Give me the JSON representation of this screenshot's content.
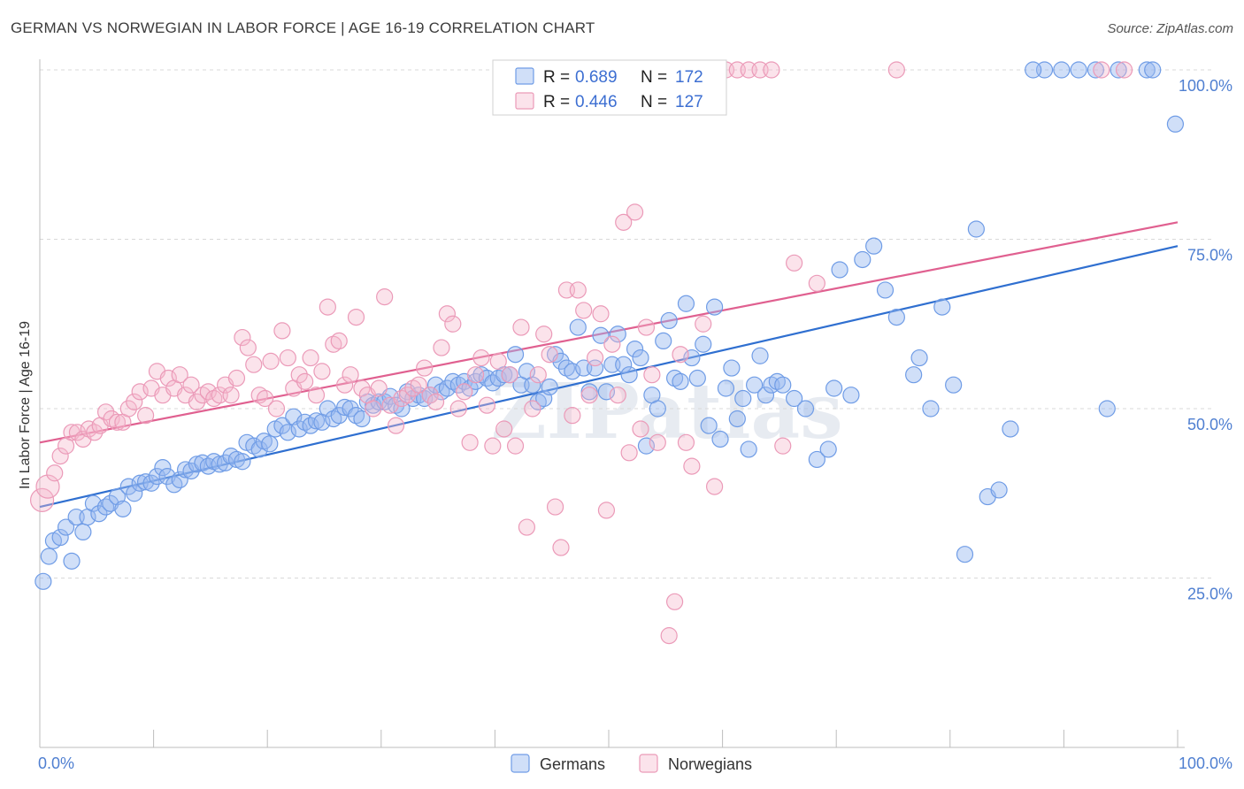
{
  "title": "GERMAN VS NORWEGIAN IN LABOR FORCE | AGE 16-19 CORRELATION CHART",
  "source": "Source: ZipAtlas.com",
  "watermark": "ZIPatlas",
  "colors": {
    "german": "#6f9ce6",
    "german_fill": "rgba(150,185,240,0.45)",
    "german_line": "#2f6fd0",
    "norwegian": "#eb9ab8",
    "norwegian_fill": "rgba(245,185,205,0.40)",
    "norwegian_line": "#e06090",
    "axis_label": "#4f7fd1",
    "grid": "#d8d8d8"
  },
  "legend": {
    "r_label": "R =",
    "n_label": "N =",
    "rows": [
      {
        "series": "Germans",
        "r": "0.689",
        "n": "172"
      },
      {
        "series": "Norwegians",
        "r": "0.446",
        "n": "127"
      }
    ]
  },
  "chart_data": {
    "type": "scatter",
    "xlabel": "",
    "ylabel": "In Labor Force | Age 16-19",
    "xlim": [
      0,
      100
    ],
    "ylim": [
      0,
      100
    ],
    "x_tick_labels": [
      "0.0%",
      "100.0%"
    ],
    "y_tick_values": [
      25,
      50,
      75,
      100
    ],
    "y_tick_labels": [
      "25.0%",
      "50.0%",
      "75.0%",
      "100.0%"
    ],
    "grid": "horizontal dashed",
    "legend_placement": "top-center",
    "series": [
      {
        "name": "Germans",
        "trend": {
          "x": [
            0,
            100
          ],
          "y": [
            35.5,
            74.0
          ]
        },
        "points": [
          [
            0.3,
            24.5
          ],
          [
            0.8,
            28.2
          ],
          [
            1.2,
            30.5
          ],
          [
            1.8,
            31
          ],
          [
            2.3,
            32.5
          ],
          [
            2.8,
            27.5
          ],
          [
            3.2,
            34
          ],
          [
            3.8,
            31.8
          ],
          [
            4.2,
            34
          ],
          [
            4.7,
            36
          ],
          [
            5.2,
            34.5
          ],
          [
            5.8,
            35.5
          ],
          [
            6.2,
            36
          ],
          [
            6.8,
            37
          ],
          [
            7.3,
            35.2
          ],
          [
            7.8,
            38.5
          ],
          [
            8.3,
            37.5
          ],
          [
            8.8,
            39
          ],
          [
            9.3,
            39.2
          ],
          [
            9.8,
            39
          ],
          [
            10.3,
            40
          ],
          [
            10.8,
            41.3
          ],
          [
            11.2,
            40
          ],
          [
            11.8,
            38.8
          ],
          [
            12.3,
            39.5
          ],
          [
            12.8,
            41
          ],
          [
            13.3,
            40.8
          ],
          [
            13.8,
            41.8
          ],
          [
            14.3,
            42
          ],
          [
            14.8,
            41.5
          ],
          [
            15.3,
            42.2
          ],
          [
            15.8,
            41.8
          ],
          [
            16.3,
            42
          ],
          [
            16.8,
            43
          ],
          [
            17.3,
            42.5
          ],
          [
            17.8,
            42.2
          ],
          [
            18.2,
            45
          ],
          [
            18.8,
            44.5
          ],
          [
            19.3,
            44
          ],
          [
            19.7,
            45.2
          ],
          [
            20.2,
            44.8
          ],
          [
            20.7,
            47
          ],
          [
            21.3,
            47.5
          ],
          [
            21.8,
            46.5
          ],
          [
            22.3,
            48.8
          ],
          [
            22.8,
            47
          ],
          [
            23.3,
            48
          ],
          [
            23.8,
            47.5
          ],
          [
            24.3,
            48.2
          ],
          [
            24.8,
            48
          ],
          [
            25.3,
            50
          ],
          [
            25.8,
            48.5
          ],
          [
            26.3,
            49
          ],
          [
            26.8,
            50.2
          ],
          [
            27.3,
            50
          ],
          [
            27.8,
            49
          ],
          [
            28.3,
            48.5
          ],
          [
            28.8,
            51
          ],
          [
            29.3,
            50.5
          ],
          [
            29.8,
            51
          ],
          [
            30.3,
            51
          ],
          [
            30.8,
            51.8
          ],
          [
            31.3,
            50.5
          ],
          [
            31.8,
            50
          ],
          [
            32.3,
            52.5
          ],
          [
            32.8,
            51.5
          ],
          [
            33.3,
            52
          ],
          [
            33.8,
            51.5
          ],
          [
            34.3,
            52
          ],
          [
            34.8,
            53.5
          ],
          [
            35.3,
            52.5
          ],
          [
            35.8,
            53
          ],
          [
            36.3,
            54
          ],
          [
            36.8,
            53.5
          ],
          [
            37.3,
            54
          ],
          [
            37.8,
            53
          ],
          [
            38.3,
            54
          ],
          [
            38.8,
            55
          ],
          [
            39.3,
            54.5
          ],
          [
            39.8,
            53.8
          ],
          [
            40.3,
            54.5
          ],
          [
            40.8,
            55
          ],
          [
            41.3,
            55
          ],
          [
            41.8,
            58
          ],
          [
            42.3,
            53.5
          ],
          [
            42.8,
            55.5
          ],
          [
            43.3,
            53.5
          ],
          [
            43.8,
            51
          ],
          [
            44.3,
            51.5
          ],
          [
            44.8,
            53.2
          ],
          [
            45.3,
            58
          ],
          [
            45.8,
            57
          ],
          [
            46.3,
            56
          ],
          [
            46.8,
            55.5
          ],
          [
            47.3,
            62
          ],
          [
            47.8,
            56
          ],
          [
            48.3,
            52.5
          ],
          [
            48.8,
            56
          ],
          [
            49.3,
            60.8
          ],
          [
            49.8,
            52.5
          ],
          [
            50.3,
            56.5
          ],
          [
            50.8,
            61
          ],
          [
            51.3,
            56.5
          ],
          [
            51.8,
            55
          ],
          [
            52.3,
            58.8
          ],
          [
            52.8,
            57.5
          ],
          [
            53.3,
            44.5
          ],
          [
            53.8,
            52
          ],
          [
            54.3,
            50
          ],
          [
            54.8,
            60
          ],
          [
            55.3,
            63
          ],
          [
            55.8,
            54.5
          ],
          [
            56.3,
            54
          ],
          [
            56.8,
            65.5
          ],
          [
            57.3,
            57.5
          ],
          [
            57.8,
            54.5
          ],
          [
            58.3,
            59.5
          ],
          [
            58.8,
            47.5
          ],
          [
            59.3,
            65
          ],
          [
            59.8,
            45.5
          ],
          [
            60.3,
            53
          ],
          [
            60.8,
            56
          ],
          [
            61.3,
            48.5
          ],
          [
            61.8,
            51.5
          ],
          [
            62.3,
            44
          ],
          [
            62.8,
            53.5
          ],
          [
            63.3,
            57.8
          ],
          [
            63.8,
            52
          ],
          [
            64.3,
            53.5
          ],
          [
            64.8,
            54
          ],
          [
            65.3,
            53.5
          ],
          [
            66.3,
            51.5
          ],
          [
            67.3,
            50
          ],
          [
            68.3,
            42.5
          ],
          [
            69.3,
            44
          ],
          [
            69.8,
            53
          ],
          [
            70.3,
            70.5
          ],
          [
            71.3,
            52
          ],
          [
            72.3,
            72
          ],
          [
            73.3,
            74
          ],
          [
            74.3,
            67.5
          ],
          [
            75.3,
            63.5
          ],
          [
            76.8,
            55
          ],
          [
            77.3,
            57.5
          ],
          [
            78.3,
            50
          ],
          [
            79.3,
            65
          ],
          [
            80.3,
            53.5
          ],
          [
            81.3,
            28.5
          ],
          [
            82.3,
            76.5
          ],
          [
            83.3,
            37
          ],
          [
            84.3,
            38
          ],
          [
            85.3,
            47
          ],
          [
            88.3,
            100
          ],
          [
            87.3,
            100
          ],
          [
            89.8,
            100
          ],
          [
            91.3,
            100
          ],
          [
            92.8,
            100
          ],
          [
            94.8,
            100
          ],
          [
            97.3,
            100
          ],
          [
            97.8,
            100
          ],
          [
            99.8,
            92
          ],
          [
            93.8,
            50
          ]
        ]
      },
      {
        "name": "Norwegians",
        "trend": {
          "x": [
            0,
            100
          ],
          "y": [
            45.0,
            77.5
          ]
        },
        "points": [
          [
            0.2,
            36.5
          ],
          [
            0.7,
            38.5
          ],
          [
            1.3,
            40.5
          ],
          [
            1.8,
            43
          ],
          [
            2.3,
            44.5
          ],
          [
            2.8,
            46.5
          ],
          [
            3.3,
            46.5
          ],
          [
            3.8,
            45.5
          ],
          [
            4.3,
            47
          ],
          [
            4.8,
            46.5
          ],
          [
            5.3,
            47.5
          ],
          [
            5.8,
            49.5
          ],
          [
            6.3,
            48.5
          ],
          [
            6.8,
            48
          ],
          [
            7.3,
            48
          ],
          [
            7.8,
            50
          ],
          [
            8.3,
            51
          ],
          [
            8.8,
            52.5
          ],
          [
            9.3,
            49
          ],
          [
            9.8,
            53
          ],
          [
            10.3,
            55.5
          ],
          [
            10.8,
            52
          ],
          [
            11.3,
            54.5
          ],
          [
            11.8,
            53
          ],
          [
            12.3,
            55
          ],
          [
            12.8,
            52
          ],
          [
            13.3,
            53.5
          ],
          [
            13.8,
            51
          ],
          [
            14.3,
            52
          ],
          [
            14.8,
            52.5
          ],
          [
            15.3,
            51.5
          ],
          [
            15.8,
            52
          ],
          [
            16.3,
            53.5
          ],
          [
            16.8,
            52
          ],
          [
            17.3,
            54.5
          ],
          [
            17.8,
            60.5
          ],
          [
            18.3,
            59
          ],
          [
            18.8,
            56.5
          ],
          [
            19.3,
            52
          ],
          [
            19.8,
            51.5
          ],
          [
            20.3,
            57
          ],
          [
            20.8,
            50
          ],
          [
            21.3,
            61.5
          ],
          [
            21.8,
            57.5
          ],
          [
            22.3,
            53
          ],
          [
            22.8,
            55
          ],
          [
            23.3,
            54
          ],
          [
            23.8,
            57.5
          ],
          [
            24.3,
            52
          ],
          [
            24.8,
            55.5
          ],
          [
            25.3,
            65
          ],
          [
            25.8,
            59.5
          ],
          [
            26.3,
            60
          ],
          [
            26.8,
            53.5
          ],
          [
            27.3,
            55
          ],
          [
            27.8,
            63.5
          ],
          [
            28.3,
            53
          ],
          [
            28.8,
            52
          ],
          [
            29.3,
            50
          ],
          [
            29.8,
            53
          ],
          [
            30.3,
            66.5
          ],
          [
            30.8,
            50.5
          ],
          [
            31.3,
            47.5
          ],
          [
            31.8,
            51.5
          ],
          [
            32.3,
            52
          ],
          [
            32.8,
            53
          ],
          [
            33.3,
            53.5
          ],
          [
            33.8,
            56
          ],
          [
            34.3,
            52
          ],
          [
            34.8,
            51
          ],
          [
            35.3,
            59
          ],
          [
            35.8,
            64
          ],
          [
            36.3,
            62.5
          ],
          [
            36.8,
            50
          ],
          [
            37.3,
            52.5
          ],
          [
            37.8,
            45
          ],
          [
            38.3,
            55
          ],
          [
            38.8,
            57.5
          ],
          [
            39.3,
            50.5
          ],
          [
            39.8,
            44.5
          ],
          [
            40.3,
            57
          ],
          [
            40.8,
            47
          ],
          [
            41.3,
            55
          ],
          [
            41.8,
            44.5
          ],
          [
            42.3,
            62
          ],
          [
            42.8,
            32.5
          ],
          [
            43.3,
            50
          ],
          [
            43.8,
            55
          ],
          [
            44.3,
            61
          ],
          [
            44.8,
            58
          ],
          [
            45.3,
            35.5
          ],
          [
            45.8,
            29.5
          ],
          [
            46.3,
            67.5
          ],
          [
            46.8,
            49
          ],
          [
            47.3,
            67.5
          ],
          [
            47.8,
            64.5
          ],
          [
            48.3,
            52
          ],
          [
            48.8,
            57.5
          ],
          [
            49.3,
            64
          ],
          [
            49.8,
            35
          ],
          [
            50.3,
            59.5
          ],
          [
            50.8,
            52
          ],
          [
            51.3,
            77.5
          ],
          [
            51.8,
            43.5
          ],
          [
            52.3,
            79
          ],
          [
            52.8,
            47
          ],
          [
            53.3,
            62
          ],
          [
            53.8,
            55
          ],
          [
            54.3,
            45
          ],
          [
            55.3,
            16.5
          ],
          [
            55.8,
            21.5
          ],
          [
            56.3,
            58
          ],
          [
            56.8,
            45
          ],
          [
            57.3,
            41.5
          ],
          [
            58.3,
            62.5
          ],
          [
            59.3,
            38.5
          ],
          [
            60.3,
            100
          ],
          [
            61.3,
            100
          ],
          [
            62.3,
            100
          ],
          [
            63.3,
            100
          ],
          [
            64.3,
            100
          ],
          [
            65.3,
            44.5
          ],
          [
            66.3,
            71.5
          ],
          [
            68.3,
            68.5
          ],
          [
            75.3,
            100
          ],
          [
            93.3,
            100
          ],
          [
            95.3,
            100
          ]
        ]
      }
    ]
  }
}
